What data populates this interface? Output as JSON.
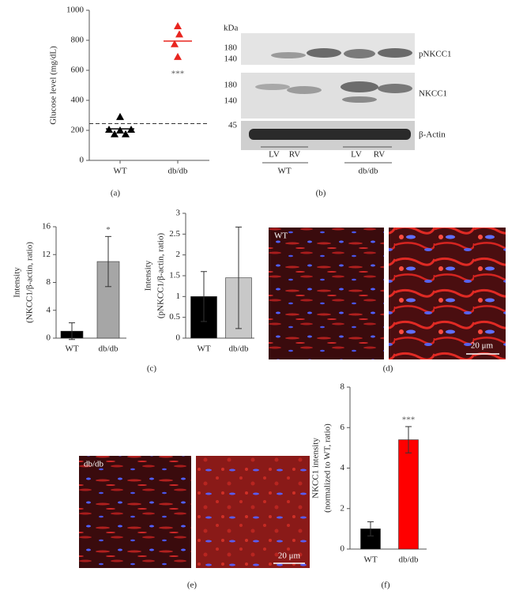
{
  "chart_data": [
    {
      "type": "scatter",
      "ylabel": "Glucose level (mg/dL)",
      "categories": [
        "WT",
        "db/db"
      ],
      "points": [
        [
          290,
          205,
          200,
          205,
          175,
          175
        ],
        [
          895,
          840,
          775,
          690
        ]
      ],
      "means": [
        210,
        795
      ],
      "reference_line": 245,
      "colors": [
        "#000000",
        "#e8251f"
      ],
      "annotation": "***",
      "ylim": [
        0,
        1000
      ],
      "yticks": [
        0,
        200,
        400,
        600,
        800,
        1000
      ]
    },
    {
      "type": "bar",
      "ylabel": [
        "Intensity",
        "(NKCC1/β-actin, ratio)"
      ],
      "categories": [
        "WT",
        "db/db"
      ],
      "values": [
        1,
        11
      ],
      "errors": [
        1.2,
        3.6
      ],
      "colors": [
        "#000000",
        "#a6a6a6"
      ],
      "annotation": "*",
      "ylim": [
        0,
        16
      ],
      "yticks": [
        0,
        4,
        8,
        12,
        16
      ]
    },
    {
      "type": "bar",
      "ylabel": [
        "Intensity",
        "(pNKCC1/β-actin, ratio)"
      ],
      "categories": [
        "WT",
        "db/db"
      ],
      "values": [
        1,
        1.45
      ],
      "errors": [
        0.6,
        1.22
      ],
      "colors": [
        "#000000",
        "#c8c8c8"
      ],
      "ylim": [
        0,
        3
      ],
      "yticks": [
        0,
        0.5,
        1,
        1.5,
        2,
        2.5,
        3
      ]
    },
    {
      "type": "bar",
      "ylabel": [
        "NKCC1 intensity",
        "(normalized to WT, ratio)"
      ],
      "categories": [
        "WT",
        "db/db"
      ],
      "values": [
        1,
        5.4
      ],
      "errors": [
        0.35,
        0.65
      ],
      "colors": [
        "#000000",
        "#ff0000"
      ],
      "annotation": "***",
      "ylim": [
        0,
        8
      ],
      "yticks": [
        0,
        2,
        4,
        6,
        8
      ]
    }
  ],
  "blot": {
    "unit": "kDa",
    "rows": [
      {
        "markers": [
          "180",
          "140"
        ],
        "label": "pNKCC1"
      },
      {
        "markers": [
          "180",
          "140"
        ],
        "label": "NKCC1"
      },
      {
        "markers": [
          "45"
        ],
        "label": "β-Actin"
      }
    ],
    "lanes": [
      "LV",
      "RV",
      "LV",
      "RV"
    ],
    "groups": [
      "WT",
      "db/db"
    ]
  },
  "images": {
    "d_label": "WT",
    "e_label": "db/db",
    "scale_d": "20 μm",
    "scale_e": "20 μm"
  },
  "panel_labels": [
    "(a)",
    "(b)",
    "(c)",
    "(d)",
    "(e)",
    "(f)"
  ]
}
